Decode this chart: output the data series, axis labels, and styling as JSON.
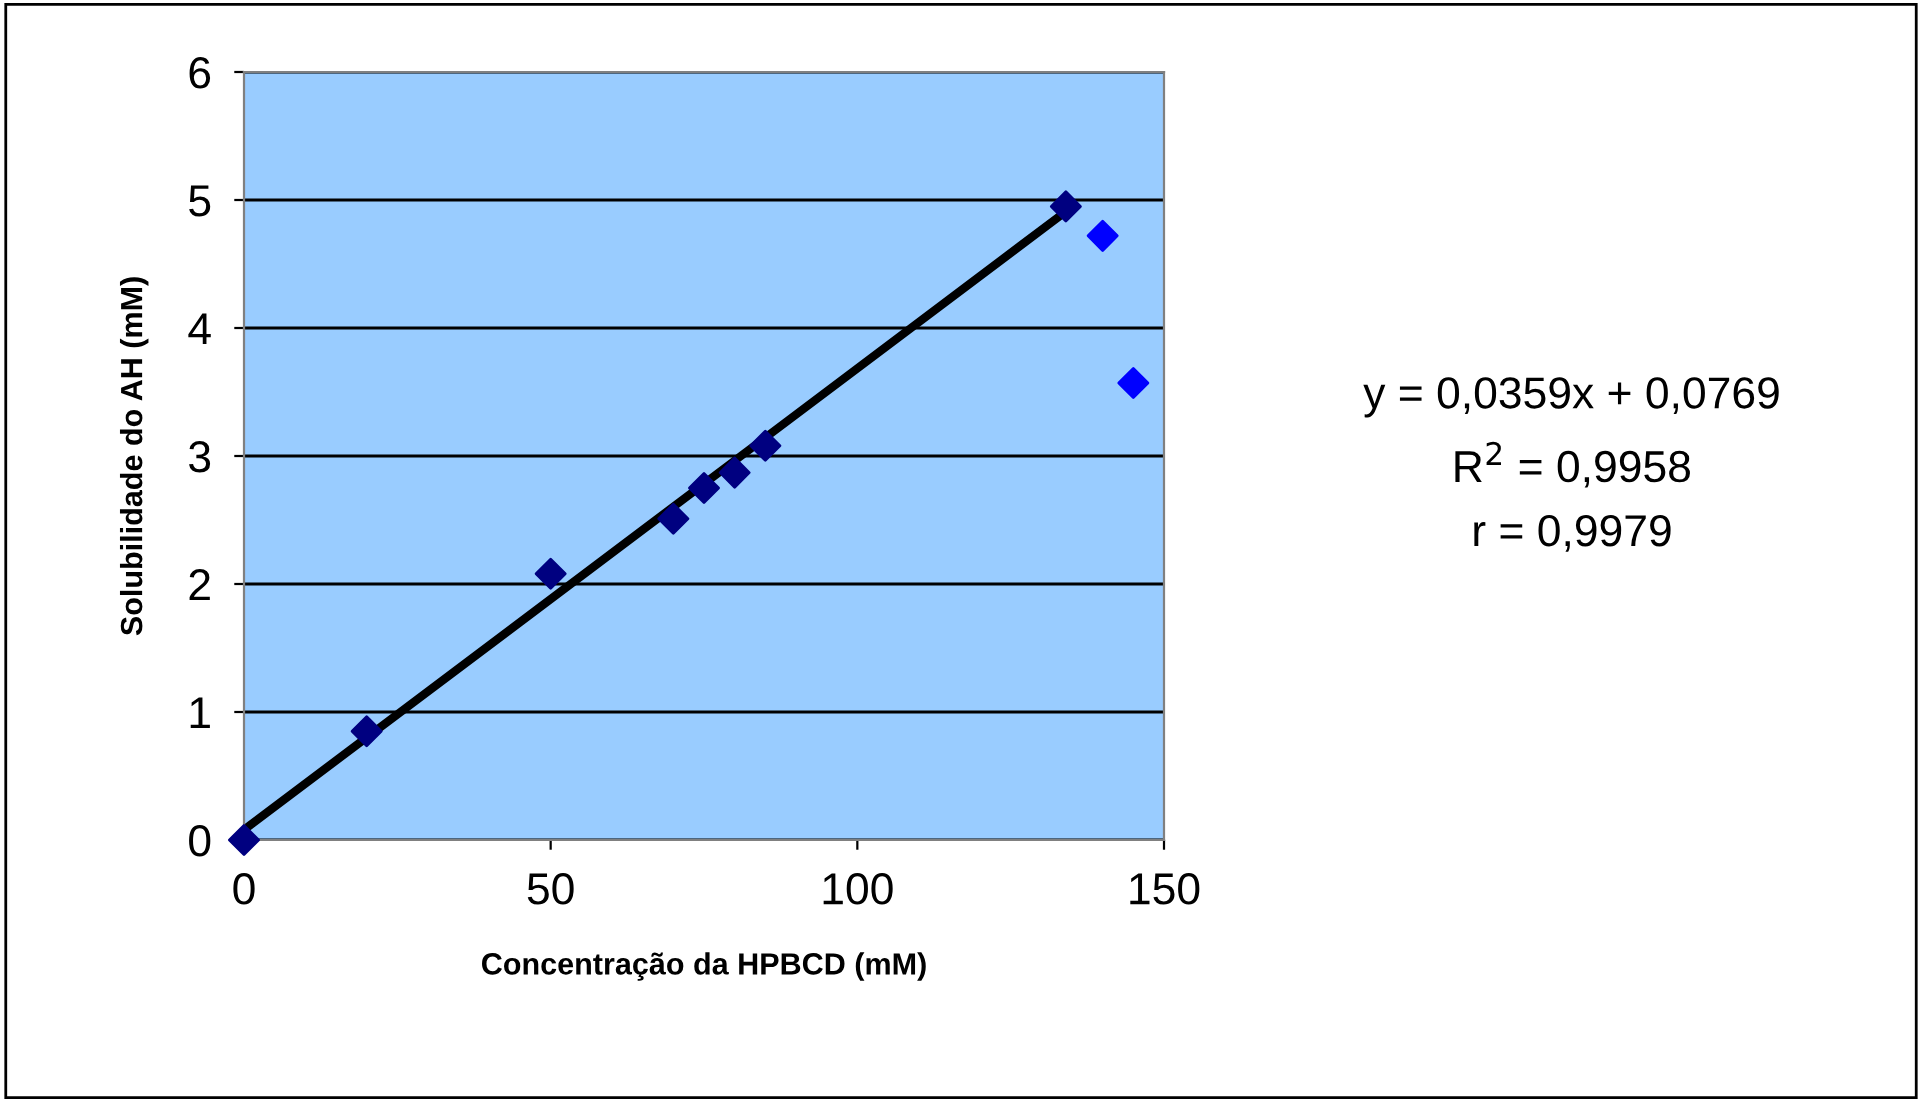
{
  "chart_data": {
    "type": "scatter",
    "xlabel": "Concentração da HPBCD (mM)",
    "ylabel": "Solubilidade do AH (mM)",
    "xlim": [
      0,
      150
    ],
    "xticks": [
      0,
      50,
      100,
      150
    ],
    "ylim": [
      0,
      6
    ],
    "yticks": [
      0,
      1,
      2,
      3,
      4,
      5,
      6
    ],
    "grid": "y",
    "marker": "diamond",
    "legend": false,
    "series": [
      {
        "color": "#000080",
        "x": [
          0,
          20,
          50,
          70,
          75,
          80,
          85,
          134
        ],
        "values": [
          0,
          0.85,
          2.08,
          2.51,
          2.75,
          2.87,
          3.08,
          4.95
        ]
      },
      {
        "color": "#0000ff",
        "x": [
          140,
          145
        ],
        "values": [
          4.72,
          3.57
        ]
      },
      {
        "type": "line",
        "marker": "none",
        "color": "#000000",
        "x": [
          0,
          134
        ],
        "values": [
          0.08,
          4.91
        ]
      }
    ],
    "annotations": [
      "y = 0,0359x + 0,0769",
      "R$^{2}$ = 0,9958",
      "r = 0,9979"
    ]
  }
}
